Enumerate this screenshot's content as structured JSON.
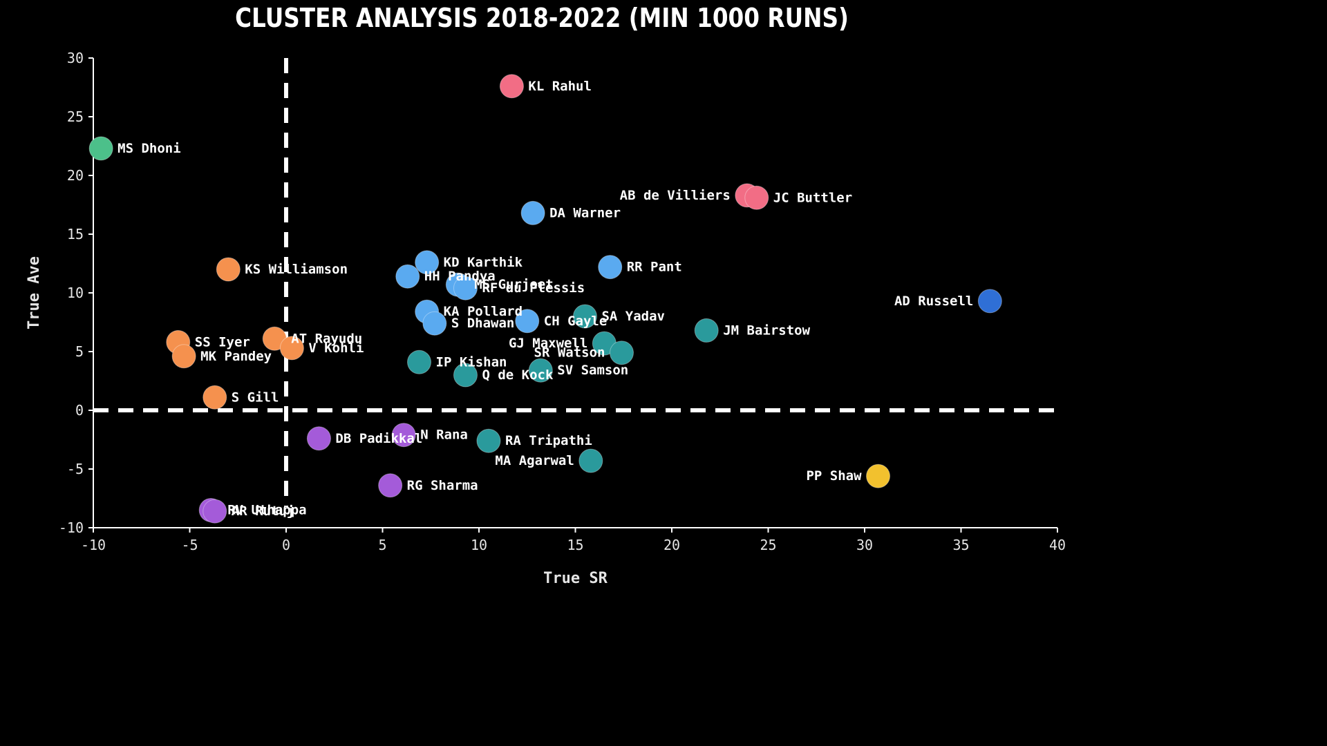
{
  "chart_data": {
    "type": "scatter",
    "title": "CLUSTER ANALYSIS 2018-2022 (MIN 1000 RUNS)",
    "xlabel": "True SR",
    "ylabel": "True Ave",
    "xlim": [
      -10,
      40
    ],
    "ylim": [
      -10,
      30
    ],
    "xticks": [
      -10,
      -5,
      0,
      5,
      10,
      15,
      20,
      25,
      30,
      35,
      40
    ],
    "yticks": [
      -10,
      -5,
      0,
      5,
      10,
      15,
      20,
      25,
      30
    ],
    "reference_lines": {
      "x": 0,
      "y": 0,
      "style": "dashed",
      "color": "#ffffff"
    },
    "grid": false,
    "cluster_colors": {
      "green": "#4cc08a",
      "orange": "#f5914e",
      "pink": "#f26d85",
      "light_blue": "#5aaaf0",
      "teal": "#2a9a9c",
      "purple": "#a45bd9",
      "blue": "#2f6fd6",
      "yellow": "#f2c12e"
    },
    "points": [
      {
        "label": "KL Rahul",
        "x": 11.7,
        "y": 27.6,
        "cluster": "pink"
      },
      {
        "label": "AB de Villiers",
        "x": 23.9,
        "y": 18.3,
        "cluster": "pink"
      },
      {
        "label": "JC Buttler",
        "x": 24.4,
        "y": 18.1,
        "cluster": "pink"
      },
      {
        "label": "MS Dhoni",
        "x": -9.6,
        "y": 22.3,
        "cluster": "green"
      },
      {
        "label": "KS Williamson",
        "x": -3.0,
        "y": 12.0,
        "cluster": "orange"
      },
      {
        "label": "SS Iyer",
        "x": -5.6,
        "y": 5.8,
        "cluster": "orange"
      },
      {
        "label": "MK Pandey",
        "x": -5.3,
        "y": 4.6,
        "cluster": "orange"
      },
      {
        "label": "AT Rayudu",
        "x": -0.6,
        "y": 6.1,
        "cluster": "orange"
      },
      {
        "label": "V Kohli",
        "x": 0.3,
        "y": 5.3,
        "cluster": "orange"
      },
      {
        "label": "S Gill",
        "x": -3.7,
        "y": 1.1,
        "cluster": "orange"
      },
      {
        "label": "DA Warner",
        "x": 12.8,
        "y": 16.8,
        "cluster": "light_blue"
      },
      {
        "label": "KD Karthik",
        "x": 7.3,
        "y": 12.6,
        "cluster": "light_blue"
      },
      {
        "label": "HH Pandya",
        "x": 6.3,
        "y": 11.4,
        "cluster": "light_blue"
      },
      {
        "label": "RR Pant",
        "x": 16.8,
        "y": 12.2,
        "cluster": "light_blue"
      },
      {
        "label": "MS Gurjeet",
        "x": 8.9,
        "y": 10.7,
        "cluster": "light_blue"
      },
      {
        "label": "RF du Plessis",
        "x": 9.3,
        "y": 10.4,
        "cluster": "light_blue"
      },
      {
        "label": "KA Pollard",
        "x": 7.3,
        "y": 8.4,
        "cluster": "light_blue"
      },
      {
        "label": "S Dhawan",
        "x": 7.7,
        "y": 7.4,
        "cluster": "light_blue"
      },
      {
        "label": "CH Gayle",
        "x": 12.5,
        "y": 7.6,
        "cluster": "light_blue"
      },
      {
        "label": "SA Yadav",
        "x": 15.5,
        "y": 8.0,
        "cluster": "teal"
      },
      {
        "label": "JM Bairstow",
        "x": 21.8,
        "y": 6.8,
        "cluster": "teal"
      },
      {
        "label": "GJ Maxwell",
        "x": 16.5,
        "y": 5.7,
        "cluster": "teal"
      },
      {
        "label": "SR Watson",
        "x": 17.4,
        "y": 4.9,
        "cluster": "teal"
      },
      {
        "label": "IP Kishan",
        "x": 6.9,
        "y": 4.1,
        "cluster": "teal"
      },
      {
        "label": "Q de Kock",
        "x": 9.3,
        "y": 3.0,
        "cluster": "teal"
      },
      {
        "label": "SV Samson",
        "x": 13.2,
        "y": 3.4,
        "cluster": "teal"
      },
      {
        "label": "RA Tripathi",
        "x": 10.5,
        "y": -2.6,
        "cluster": "teal"
      },
      {
        "label": "MA Agarwal",
        "x": 15.8,
        "y": -4.3,
        "cluster": "teal"
      },
      {
        "label": "DB Padikkal",
        "x": 1.7,
        "y": -2.4,
        "cluster": "purple"
      },
      {
        "label": "N Rana",
        "x": 6.1,
        "y": -2.1,
        "cluster": "purple"
      },
      {
        "label": "RG Sharma",
        "x": 5.4,
        "y": -6.4,
        "cluster": "purple"
      },
      {
        "label": "RV Uthappa",
        "x": -3.9,
        "y": -8.5,
        "cluster": "purple"
      },
      {
        "label": "AR Rutuj",
        "x": -3.7,
        "y": -8.6,
        "cluster": "purple"
      },
      {
        "label": "AD Russell",
        "x": 36.5,
        "y": 9.3,
        "cluster": "blue"
      },
      {
        "label": "PP Shaw",
        "x": 30.7,
        "y": -5.6,
        "cluster": "yellow"
      }
    ]
  }
}
